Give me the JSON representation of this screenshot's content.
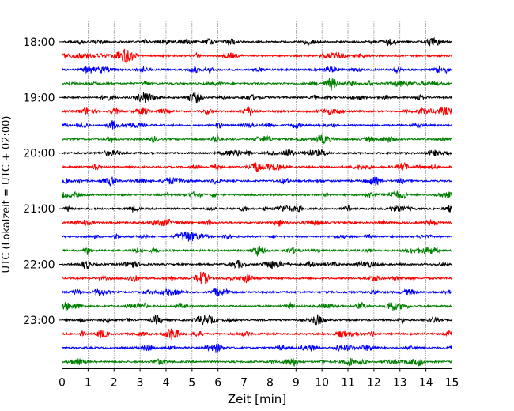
{
  "chart_data": {
    "type": "line",
    "title": "",
    "xlabel": "Zeit  [min]",
    "ylabel": "UTC (Lokalzeit = UTC + 02:00)",
    "xlim": [
      0,
      15
    ],
    "x_ticks": [
      0,
      1,
      2,
      3,
      4,
      5,
      6,
      7,
      8,
      9,
      10,
      11,
      12,
      13,
      14,
      15
    ],
    "y_tick_labels": [
      "18:00",
      "19:00",
      "20:00",
      "21:00",
      "22:00",
      "23:00"
    ],
    "y_ticks": [
      0,
      1,
      2,
      3,
      4,
      5
    ],
    "ylim": [
      5.875,
      -0.375
    ],
    "grid": "vertical",
    "color_cycle": [
      "#000000",
      "#ff0000",
      "#0000ff",
      "#008000"
    ],
    "series": [
      {
        "offset": 0.0
      },
      {
        "offset": 0.25
      },
      {
        "offset": 0.5
      },
      {
        "offset": 0.75
      },
      {
        "offset": 1.0
      },
      {
        "offset": 1.25
      },
      {
        "offset": 1.5
      },
      {
        "offset": 1.75
      },
      {
        "offset": 2.0
      },
      {
        "offset": 2.25
      },
      {
        "offset": 2.5
      },
      {
        "offset": 2.75
      },
      {
        "offset": 3.0
      },
      {
        "offset": 3.25
      },
      {
        "offset": 3.5
      },
      {
        "offset": 3.75
      },
      {
        "offset": 4.0
      },
      {
        "offset": 4.25
      },
      {
        "offset": 4.5
      },
      {
        "offset": 4.75
      },
      {
        "offset": 5.0
      },
      {
        "offset": 5.25
      },
      {
        "offset": 5.5
      },
      {
        "offset": 5.75
      }
    ]
  }
}
